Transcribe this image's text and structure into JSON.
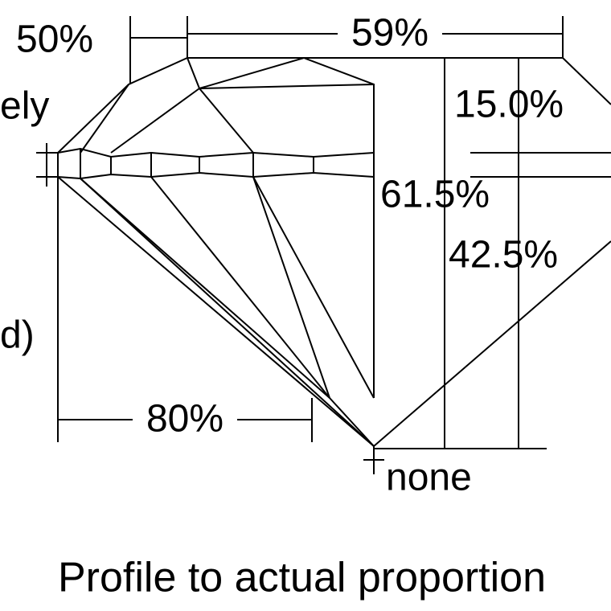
{
  "labels": {
    "crown_angle_top": "50%",
    "table": "59%",
    "left_word": "ely",
    "crown_height": "15.0%",
    "total_depth": "61.5%",
    "pavilion_depth": "42.5%",
    "left_word2": "d)",
    "lower_half": "80%",
    "culet": "none"
  },
  "caption": "Profile to actual proportion"
}
